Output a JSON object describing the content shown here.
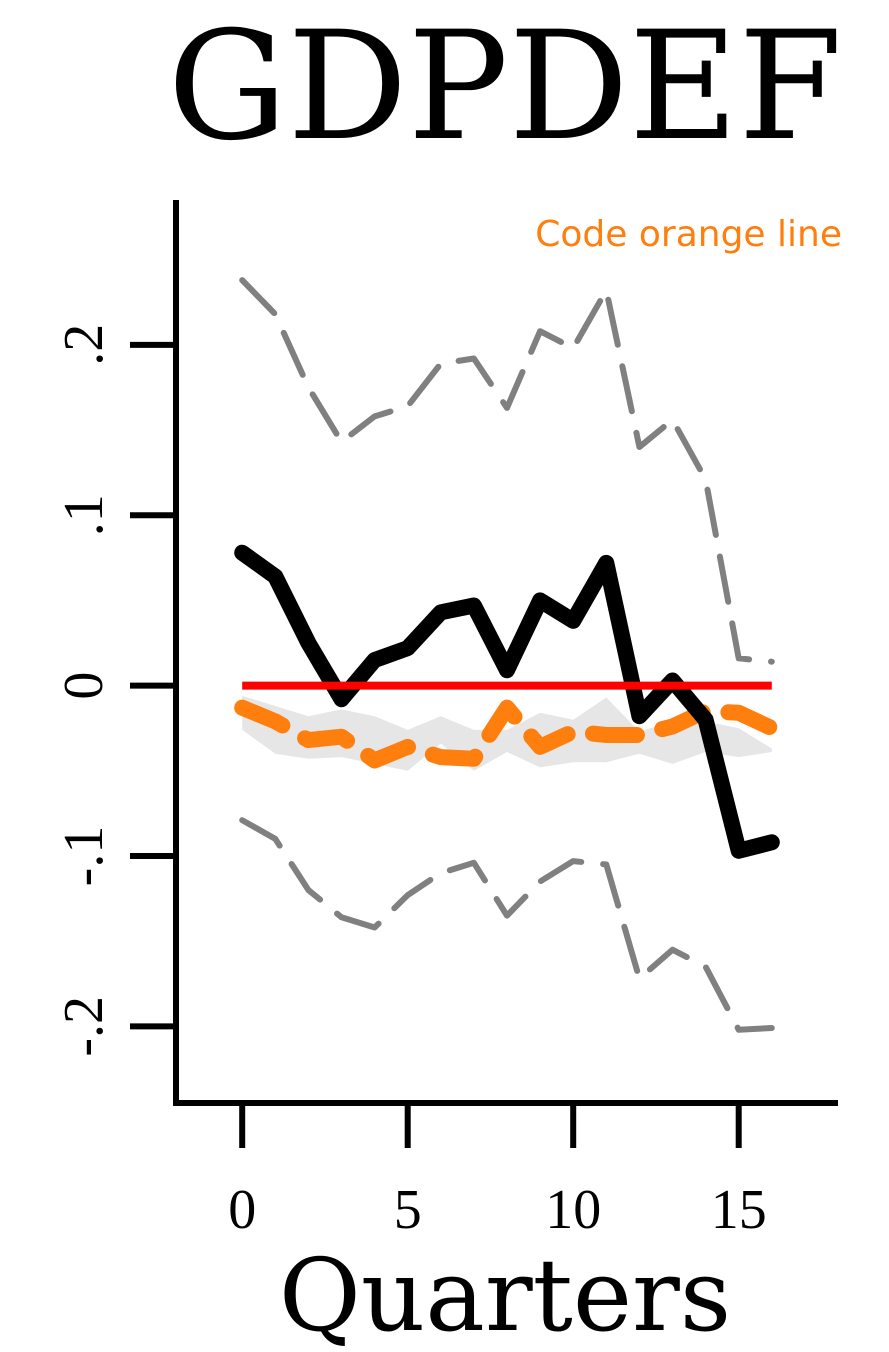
{
  "chart_data": {
    "type": "line",
    "title": "GDPDEF",
    "xlabel": "Quarters",
    "ylabel": "",
    "annotation": "Code orange line",
    "xlim": [
      -2,
      18
    ],
    "ylim": [
      -0.245,
      0.285
    ],
    "x_ticks": [
      0,
      5,
      10,
      15
    ],
    "x_tick_labels": [
      "0",
      "5",
      "10",
      "15"
    ],
    "y_ticks": [
      -0.2,
      -0.1,
      0,
      0.1,
      0.2
    ],
    "y_tick_labels": [
      "-.2",
      "-.1",
      "0",
      ".1",
      ".2"
    ],
    "x": [
      0,
      1,
      2,
      3,
      4,
      5,
      6,
      7,
      8,
      9,
      10,
      11,
      12,
      13,
      14,
      15,
      16
    ],
    "series": [
      {
        "role": "point-estimate",
        "color": "#000000",
        "values": [
          0.078,
          0.064,
          0.025,
          -0.008,
          0.015,
          0.022,
          0.043,
          0.047,
          0.009,
          0.05,
          0.038,
          0.072,
          -0.018,
          0.003,
          -0.02,
          -0.097,
          -0.092
        ]
      },
      {
        "role": "upper-band",
        "color": "#808080",
        "values": [
          0.238,
          0.218,
          0.175,
          0.143,
          0.158,
          0.164,
          0.189,
          0.192,
          0.163,
          0.208,
          0.198,
          0.232,
          0.14,
          0.156,
          0.121,
          0.016,
          0.014
        ]
      },
      {
        "role": "lower-band",
        "color": "#808080",
        "values": [
          -0.079,
          -0.09,
          -0.12,
          -0.136,
          -0.142,
          -0.123,
          -0.11,
          -0.104,
          -0.135,
          -0.115,
          -0.103,
          -0.105,
          -0.172,
          -0.155,
          -0.165,
          -0.202,
          -0.201
        ]
      },
      {
        "role": "orange-line",
        "color": "#ff7f0e",
        "values": [
          -0.013,
          -0.021,
          -0.032,
          -0.03,
          -0.044,
          -0.036,
          -0.042,
          -0.043,
          -0.013,
          -0.036,
          -0.027,
          -0.029,
          -0.029,
          -0.024,
          -0.015,
          -0.016,
          -0.025
        ]
      },
      {
        "role": "zero-line",
        "color": "#ff0000",
        "values": [
          0,
          0,
          0,
          0,
          0,
          0,
          0,
          0,
          0,
          0,
          0,
          0,
          0,
          0,
          0,
          0,
          0
        ]
      }
    ],
    "shaded_band": {
      "color": "#e6e6e6",
      "upper": [
        -0.006,
        -0.012,
        -0.018,
        -0.014,
        -0.018,
        -0.026,
        -0.018,
        -0.026,
        -0.026,
        -0.016,
        -0.02,
        -0.007,
        -0.027,
        -0.021,
        -0.021,
        -0.025,
        -0.037
      ],
      "lower": [
        -0.026,
        -0.04,
        -0.043,
        -0.042,
        -0.046,
        -0.05,
        -0.034,
        -0.05,
        -0.039,
        -0.048,
        -0.045,
        -0.045,
        -0.04,
        -0.046,
        -0.039,
        -0.042,
        -0.039
      ]
    },
    "grid": false,
    "legend": "none"
  }
}
